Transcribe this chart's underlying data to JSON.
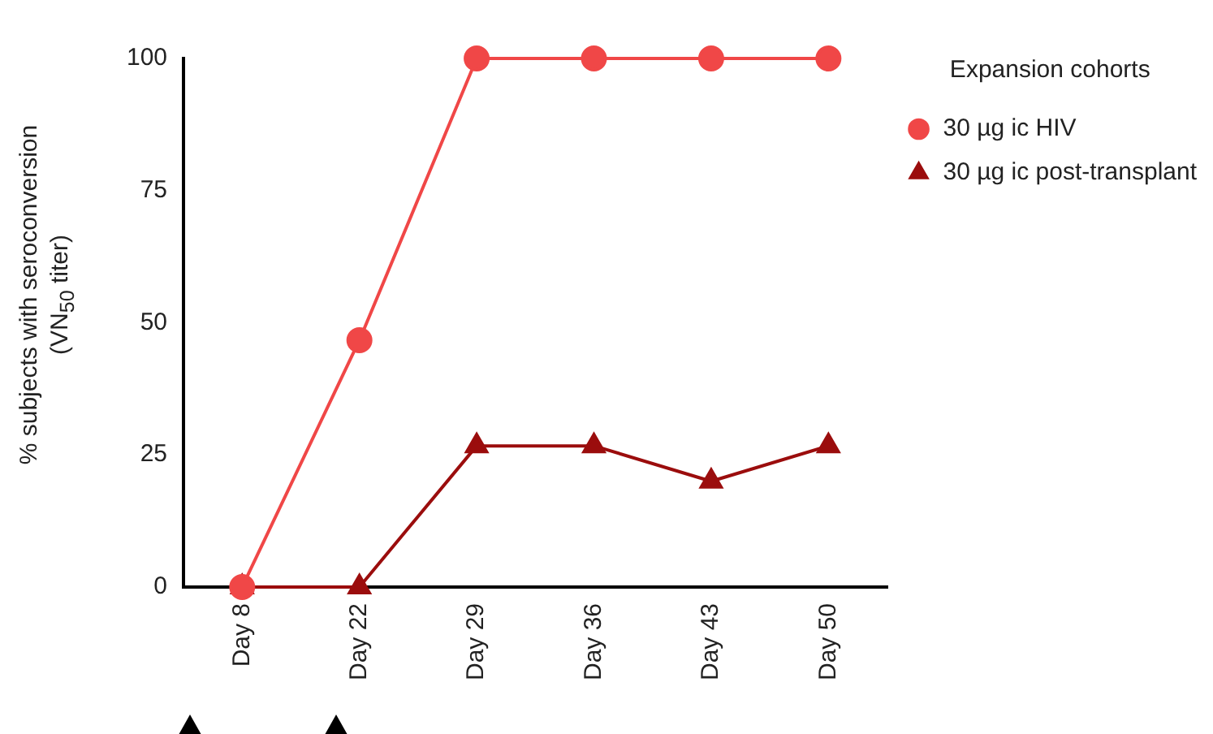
{
  "chart_data": {
    "type": "line",
    "ylabel": "% subjects with seroconversion\n(VN$_{50}$ titer)",
    "legend_title": "Expansion cohorts",
    "categories": [
      "Day 8",
      "Day 22",
      "Day 29",
      "Day 36",
      "Day 43",
      "Day 50"
    ],
    "series": [
      {
        "name": "30 µg ic HIV",
        "color": "#f04747",
        "marker": "circle",
        "values": [
          0,
          46.7,
          100,
          100,
          100,
          100
        ]
      },
      {
        "name": "30 µg ic post-transplant",
        "color": "#9b0d0d",
        "marker": "triangle",
        "values": [
          0,
          0,
          26.7,
          26.7,
          20,
          26.7
        ]
      }
    ],
    "ylim": [
      0,
      100
    ],
    "yticks": [
      0,
      25,
      50,
      75,
      100
    ],
    "grid": false,
    "legend": "top right",
    "line_style": "solid"
  }
}
